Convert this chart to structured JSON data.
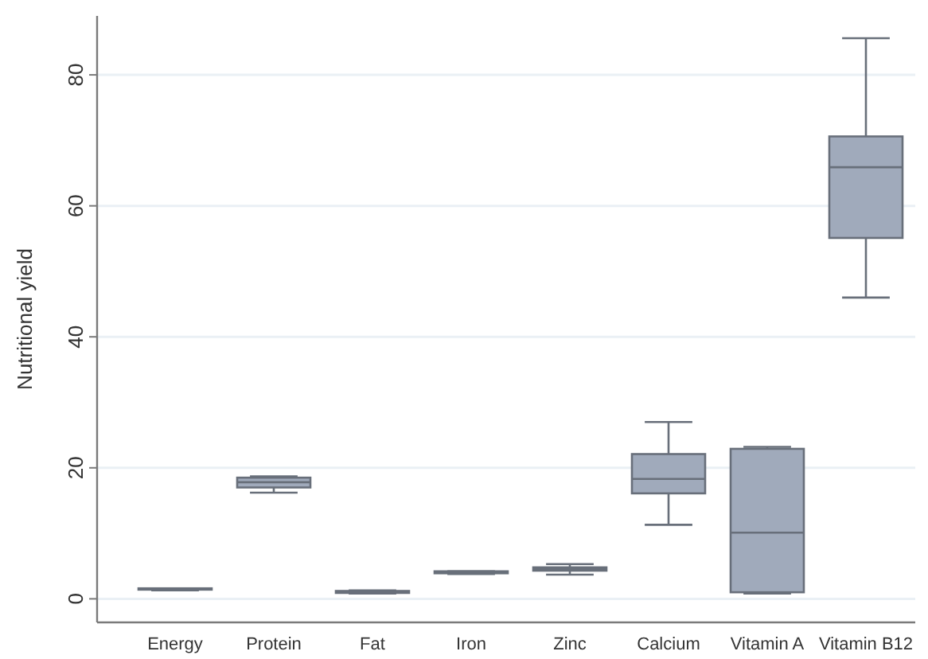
{
  "chart_data": {
    "type": "box",
    "ylabel": "Nutritional yield",
    "categories": [
      "Energy",
      "Protein",
      "Fat",
      "Iron",
      "Zinc",
      "Calcium",
      "Vitamin A",
      "Vitamin B12"
    ],
    "series": [
      {
        "color": "#a0aabb",
        "boxes": [
          {
            "low": 1.3,
            "q1": 1.4,
            "median": 1.5,
            "q3": 1.6,
            "high": 1.6
          },
          {
            "low": 16.2,
            "q1": 17.0,
            "median": 17.8,
            "q3": 18.5,
            "high": 18.7
          },
          {
            "low": 0.8,
            "q1": 0.9,
            "median": 1.0,
            "q3": 1.2,
            "high": 1.3
          },
          {
            "low": 3.8,
            "q1": 3.9,
            "median": 4.0,
            "q3": 4.2,
            "high": 4.2
          },
          {
            "low": 3.7,
            "q1": 4.3,
            "median": 4.5,
            "q3": 4.8,
            "high": 5.3
          },
          {
            "low": 11.3,
            "q1": 16.1,
            "median": 18.3,
            "q3": 22.1,
            "high": 27.0
          },
          {
            "low": 0.8,
            "q1": 1.0,
            "median": 10.1,
            "q3": 22.9,
            "high": 23.2
          },
          {
            "low": 46.0,
            "q1": 55.1,
            "median": 65.9,
            "q3": 70.6,
            "high": 85.6
          }
        ]
      }
    ],
    "ylim": [
      -3.6,
      89
    ],
    "yticks": [
      0,
      20,
      40,
      60,
      80
    ],
    "grid": "y"
  }
}
